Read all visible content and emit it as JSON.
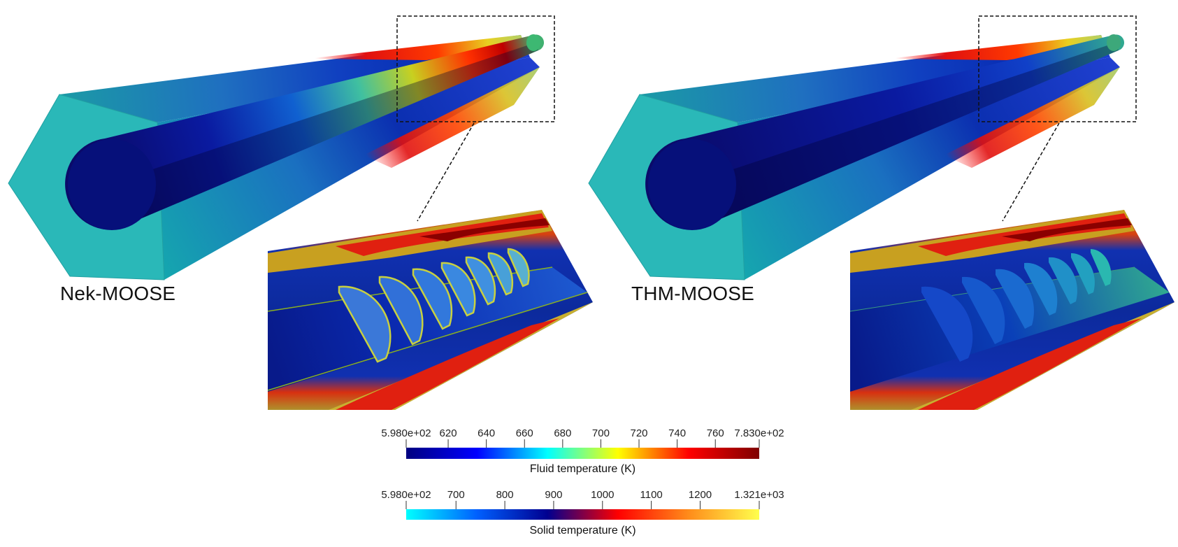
{
  "panels": [
    {
      "label": "Nek-MOOSE"
    },
    {
      "label": "THM-MOOSE"
    }
  ],
  "colorbars": [
    {
      "title": "Fluid temperature (K)",
      "min": 598,
      "max": 783,
      "ticks": [
        {
          "value": 598,
          "label": "5.980e+02"
        },
        {
          "value": 620,
          "label": "620"
        },
        {
          "value": 640,
          "label": "640"
        },
        {
          "value": 660,
          "label": "660"
        },
        {
          "value": 680,
          "label": "680"
        },
        {
          "value": 700,
          "label": "700"
        },
        {
          "value": 720,
          "label": "720"
        },
        {
          "value": 740,
          "label": "740"
        },
        {
          "value": 760,
          "label": "760"
        },
        {
          "value": 783,
          "label": "7.830e+02"
        }
      ],
      "colormap": [
        "#00007f",
        "#0000ff",
        "#00ffff",
        "#ffff00",
        "#ff0000",
        "#7f0000"
      ]
    },
    {
      "title": "Solid temperature (K)",
      "min": 598,
      "max": 1321,
      "ticks": [
        {
          "value": 598,
          "label": "5.980e+02"
        },
        {
          "value": 700,
          "label": "700"
        },
        {
          "value": 800,
          "label": "800"
        },
        {
          "value": 900,
          "label": "900"
        },
        {
          "value": 1000,
          "label": "1000"
        },
        {
          "value": 1100,
          "label": "1100"
        },
        {
          "value": 1200,
          "label": "1200"
        },
        {
          "value": 1321,
          "label": "1.321e+03"
        }
      ],
      "colormap": [
        "#00ffff",
        "#0060ff",
        "#000090",
        "#ff0000",
        "#ff8c1a",
        "#ffff4d"
      ]
    }
  ]
}
